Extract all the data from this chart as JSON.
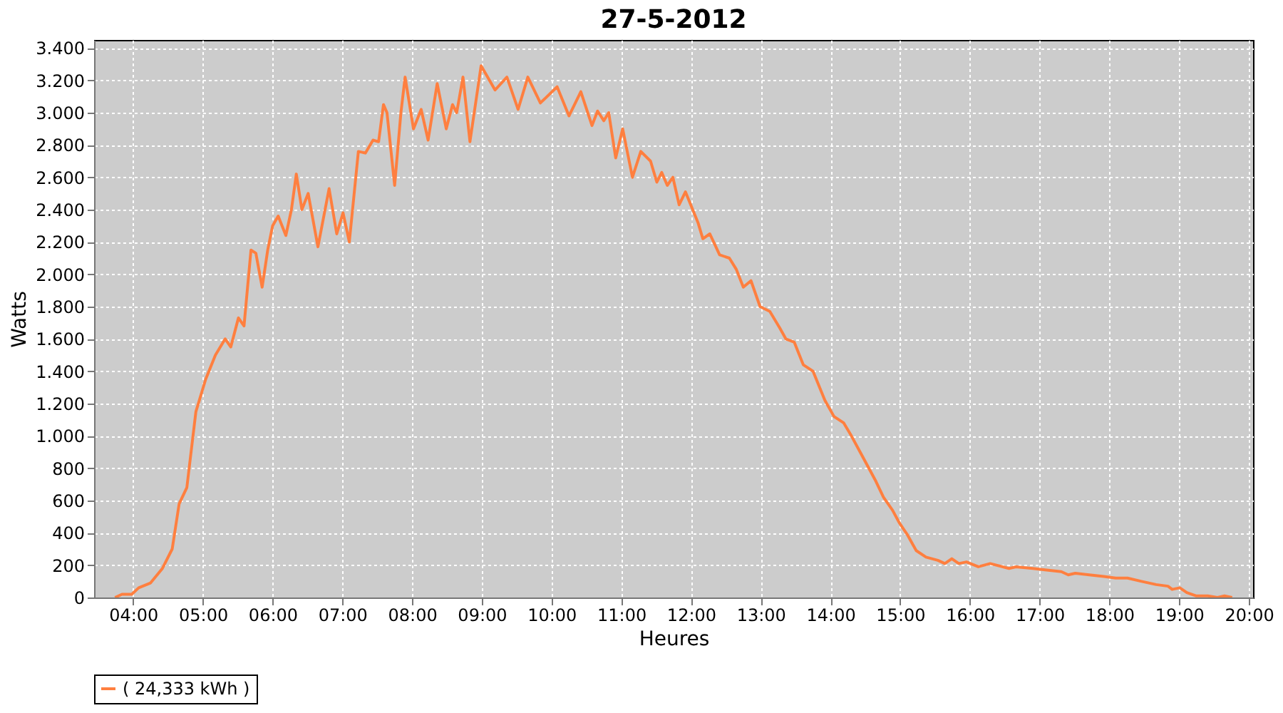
{
  "chart_data": {
    "type": "line",
    "title": "27-5-2012",
    "xlabel": "Heures",
    "ylabel": "Watts",
    "xlim": [
      3.44,
      20.06
    ],
    "ylim": [
      0,
      3450
    ],
    "xticks": [
      {
        "value": 4,
        "label": "04:00"
      },
      {
        "value": 5,
        "label": "05:00"
      },
      {
        "value": 6,
        "label": "06:00"
      },
      {
        "value": 7,
        "label": "07:00"
      },
      {
        "value": 8,
        "label": "08:00"
      },
      {
        "value": 9,
        "label": "09:00"
      },
      {
        "value": 10,
        "label": "10:00"
      },
      {
        "value": 11,
        "label": "11:00"
      },
      {
        "value": 12,
        "label": "12:00"
      },
      {
        "value": 13,
        "label": "13:00"
      },
      {
        "value": 14,
        "label": "14:00"
      },
      {
        "value": 15,
        "label": "15:00"
      },
      {
        "value": 16,
        "label": "16:00"
      },
      {
        "value": 17,
        "label": "17:00"
      },
      {
        "value": 18,
        "label": "18:00"
      },
      {
        "value": 19,
        "label": "19:00"
      },
      {
        "value": 20,
        "label": "20:00"
      }
    ],
    "yticks": [
      {
        "value": 0,
        "label": "0"
      },
      {
        "value": 200,
        "label": "200"
      },
      {
        "value": 400,
        "label": "400"
      },
      {
        "value": 600,
        "label": "600"
      },
      {
        "value": 800,
        "label": "800"
      },
      {
        "value": 1000,
        "label": "1.000"
      },
      {
        "value": 1200,
        "label": "1.200"
      },
      {
        "value": 1400,
        "label": "1.400"
      },
      {
        "value": 1600,
        "label": "1.600"
      },
      {
        "value": 1800,
        "label": "1.800"
      },
      {
        "value": 2000,
        "label": "2.000"
      },
      {
        "value": 2200,
        "label": "2.200"
      },
      {
        "value": 2400,
        "label": "2.400"
      },
      {
        "value": 2600,
        "label": "2.600"
      },
      {
        "value": 2800,
        "label": "2.800"
      },
      {
        "value": 3000,
        "label": "3.000"
      },
      {
        "value": 3200,
        "label": "3.200"
      },
      {
        "value": 3400,
        "label": "3.400"
      }
    ],
    "grid": true,
    "legend": "bottom",
    "marker": "none",
    "line_style": "solid",
    "series": [
      {
        "name": "( 24,333 kWh )",
        "color": "#ff7f3f",
        "x": [
          3.74,
          3.84,
          3.98,
          4.08,
          4.25,
          4.42,
          4.56,
          4.66,
          4.77,
          4.9,
          5.04,
          5.18,
          5.32,
          5.4,
          5.51,
          5.59,
          5.69,
          5.76,
          5.85,
          5.93,
          6.0,
          6.08,
          6.19,
          6.27,
          6.34,
          6.42,
          6.51,
          6.65,
          6.81,
          6.92,
          7.01,
          7.1,
          7.23,
          7.33,
          7.44,
          7.52,
          7.59,
          7.64,
          7.75,
          7.84,
          7.9,
          8.02,
          8.13,
          8.23,
          8.36,
          8.49,
          8.58,
          8.64,
          8.73,
          8.83,
          8.99,
          9.19,
          9.36,
          9.52,
          9.66,
          9.84,
          10.08,
          10.25,
          10.42,
          10.58,
          10.66,
          10.75,
          10.82,
          10.92,
          11.02,
          11.16,
          11.28,
          11.42,
          11.51,
          11.58,
          11.66,
          11.74,
          11.83,
          11.92,
          12.1,
          12.17,
          12.27,
          12.41,
          12.55,
          12.65,
          12.75,
          12.86,
          12.99,
          13.13,
          13.27,
          13.36,
          13.48,
          13.61,
          13.75,
          13.92,
          14.05,
          14.19,
          14.3,
          14.45,
          14.65,
          14.76,
          14.89,
          14.99,
          15.1,
          15.23,
          15.37,
          15.54,
          15.64,
          15.74,
          15.84,
          15.95,
          16.12,
          16.29,
          16.56,
          16.66,
          16.9,
          17.1,
          17.31,
          17.41,
          17.51,
          17.71,
          17.92,
          18.09,
          18.26,
          18.46,
          18.67,
          18.84,
          18.9,
          19.01,
          19.11,
          19.24,
          19.41,
          19.55,
          19.65,
          19.76
        ],
        "values": [
          0,
          20,
          20,
          60,
          90,
          180,
          300,
          580,
          680,
          1150,
          1350,
          1500,
          1600,
          1550,
          1730,
          1680,
          2150,
          2130,
          1920,
          2150,
          2300,
          2360,
          2240,
          2400,
          2620,
          2400,
          2500,
          2170,
          2530,
          2250,
          2380,
          2200,
          2760,
          2750,
          2830,
          2820,
          3050,
          3000,
          2550,
          3000,
          3220,
          2900,
          3020,
          2830,
          3180,
          2900,
          3050,
          3000,
          3220,
          2820,
          3290,
          3140,
          3220,
          3020,
          3220,
          3060,
          3160,
          2980,
          3130,
          2920,
          3010,
          2950,
          3000,
          2720,
          2900,
          2600,
          2760,
          2700,
          2570,
          2630,
          2550,
          2600,
          2430,
          2510,
          2320,
          2220,
          2250,
          2120,
          2100,
          2030,
          1920,
          1960,
          1800,
          1770,
          1670,
          1600,
          1580,
          1440,
          1400,
          1220,
          1120,
          1080,
          1000,
          880,
          720,
          620,
          540,
          460,
          390,
          290,
          250,
          230,
          210,
          240,
          210,
          220,
          190,
          210,
          180,
          190,
          180,
          170,
          160,
          140,
          150,
          140,
          130,
          120,
          120,
          100,
          80,
          70,
          50,
          60,
          30,
          10,
          10,
          0,
          10,
          0
        ]
      }
    ]
  }
}
